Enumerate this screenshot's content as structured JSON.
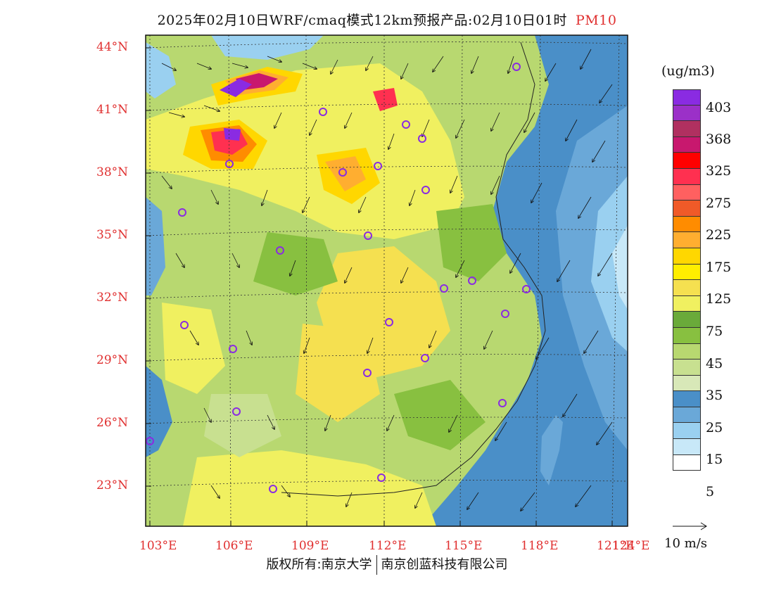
{
  "title": {
    "text": "2025年02月10日WRF/cmaq模式12km预报产品:02月10日01时",
    "pollutant": "PM10"
  },
  "axes": {
    "lat_labels": [
      "44°N",
      "41°N",
      "38°N",
      "35°N",
      "32°N",
      "29°N",
      "26°N",
      "23°N"
    ],
    "lon_labels": [
      "103°E",
      "106°E",
      "109°E",
      "112°E",
      "115°E",
      "118°E",
      "121°E",
      "124°E"
    ]
  },
  "legend": {
    "unit": "(ug/m3)",
    "labels": [
      "403",
      "368",
      "325",
      "275",
      "225",
      "175",
      "125",
      "75",
      "45",
      "35",
      "25",
      "15",
      "5"
    ],
    "colors": [
      "#8a2be2",
      "#9b30c8",
      "#b03060",
      "#c8186e",
      "#ff0000",
      "#ff3050",
      "#ff6060",
      "#f05a28",
      "#ff8c00",
      "#ffae30",
      "#ffd700",
      "#ffee00",
      "#f5e050",
      "#f0f060",
      "#6aaa3a",
      "#88c040",
      "#b8d870",
      "#c8e090",
      "#d8e8b8",
      "#4a8fc8",
      "#6aa8d8",
      "#9ad0f0",
      "#c8e8f8",
      "#ffffff"
    ]
  },
  "wind": {
    "scale_label": "10 m/s"
  },
  "footer": {
    "left": "版权所有:南京大学",
    "right": "南京创蓝科技有限公司"
  },
  "colors": {
    "label_red": "#e03030",
    "sea_blue": "#4a8fc8",
    "land_green": "#b8d870",
    "land_yellow": "#f0f060"
  }
}
